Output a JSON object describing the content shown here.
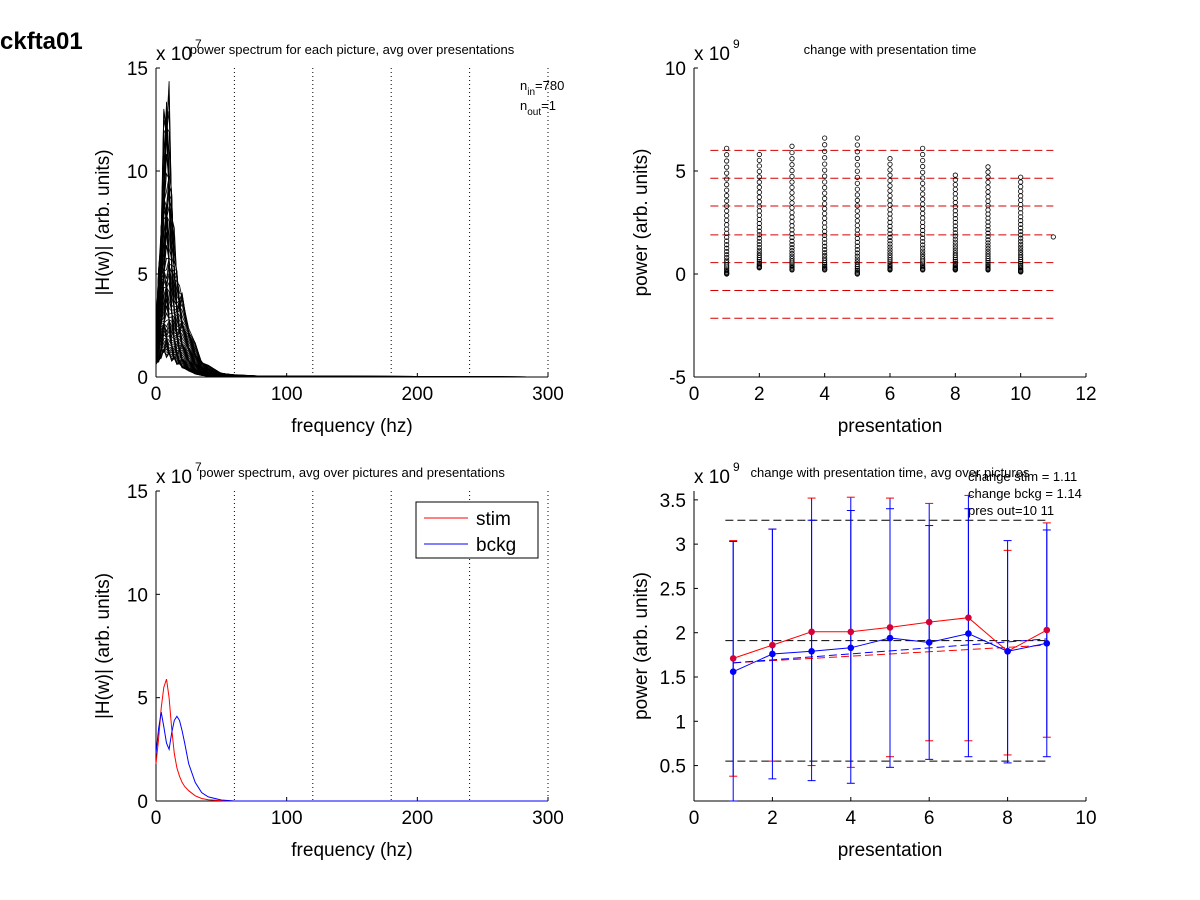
{
  "figure": {
    "title": "ckfta01",
    "colors": {
      "stim": "#ff0000",
      "bckg": "#0000ff",
      "raw": "#000000",
      "refline_red": "#d40000",
      "refline_black": "#000000"
    }
  },
  "chart_data": [
    {
      "id": "p1",
      "type": "line",
      "title": "power spectrum for each picture, avg over presentations",
      "xlabel": "frequency (hz)",
      "ylabel": "|H(w)| (arb. units)",
      "exponent_text": "x 10",
      "exponent_power": "7",
      "xlim": [
        0,
        300
      ],
      "ylim": [
        0,
        15
      ],
      "xticks": [
        0,
        100,
        200,
        300
      ],
      "yticks": [
        0,
        5,
        10,
        15
      ],
      "vlines_dotted": [
        60,
        120,
        180,
        240,
        300
      ],
      "annotations": [
        {
          "base": "n",
          "sub": "in",
          "rest": "=780"
        },
        {
          "base": "n",
          "sub": "out",
          "rest": "=1"
        }
      ],
      "note": "dense bundle of 780 individual spectra (black), peaking around 5-10 hz",
      "envelope": {
        "x": [
          0,
          2,
          4,
          6,
          8,
          10,
          12,
          14,
          16,
          18,
          20,
          25,
          30,
          35,
          40,
          50,
          60,
          80,
          120,
          200,
          300
        ],
        "max": [
          2.5,
          4.8,
          8.0,
          11.5,
          14.1,
          12.5,
          9.0,
          6.5,
          5.0,
          4.3,
          3.8,
          2.5,
          1.5,
          0.8,
          0.5,
          0.2,
          0.1,
          0.05,
          0.05,
          0.03,
          0.0
        ],
        "min": [
          0.6,
          0.8,
          1.0,
          1.2,
          1.1,
          1.0,
          0.9,
          0.8,
          0.7,
          0.6,
          0.5,
          0.3,
          0.15,
          0.08,
          0.04,
          0.01,
          0.0,
          0.0,
          0.0,
          0.0,
          0.0
        ]
      }
    },
    {
      "id": "p2",
      "type": "scatter",
      "title": "change with presentation time",
      "xlabel": "presentation",
      "ylabel": "power (arb. units)",
      "exponent_text": "x 10",
      "exponent_power": "9",
      "xlim": [
        0,
        12
      ],
      "ylim": [
        -5,
        10
      ],
      "xticks": [
        0,
        2,
        4,
        6,
        8,
        10,
        12
      ],
      "yticks": [
        -5,
        0,
        5,
        10
      ],
      "hlines_dashed": [
        6.0,
        4.65,
        3.3,
        1.9,
        0.55,
        -0.8,
        -2.15
      ],
      "columns": [
        {
          "x": 1,
          "ymin": 0.0,
          "ymax": 6.1
        },
        {
          "x": 2,
          "ymin": 0.3,
          "ymax": 5.8
        },
        {
          "x": 3,
          "ymin": 0.2,
          "ymax": 6.2
        },
        {
          "x": 4,
          "ymin": 0.2,
          "ymax": 6.6
        },
        {
          "x": 5,
          "ymin": 0.0,
          "ymax": 6.6
        },
        {
          "x": 6,
          "ymin": 0.2,
          "ymax": 5.6
        },
        {
          "x": 7,
          "ymin": 0.2,
          "ymax": 6.1
        },
        {
          "x": 8,
          "ymin": 0.2,
          "ymax": 4.8
        },
        {
          "x": 9,
          "ymin": 0.2,
          "ymax": 5.2
        },
        {
          "x": 10,
          "ymin": 0.1,
          "ymax": 4.7
        },
        {
          "x": 11,
          "ymin": 1.8,
          "ymax": 1.8
        }
      ]
    },
    {
      "id": "p3",
      "type": "line",
      "title": "power spectrum, avg over pictures and presentations",
      "xlabel": "frequency (hz)",
      "ylabel": "|H(w)| (arb. units)",
      "exponent_text": "x 10",
      "exponent_power": "7",
      "xlim": [
        0,
        300
      ],
      "ylim": [
        0,
        15
      ],
      "xticks": [
        0,
        100,
        200,
        300
      ],
      "yticks": [
        0,
        5,
        10,
        15
      ],
      "vlines_dotted": [
        60,
        120,
        180,
        240,
        300
      ],
      "legend": {
        "position": "top-right"
      },
      "x": [
        0,
        2,
        4,
        6,
        8,
        10,
        12,
        14,
        16,
        18,
        20,
        22,
        25,
        30,
        35,
        40,
        50,
        60,
        100,
        200,
        300
      ],
      "series": [
        {
          "name": "stim",
          "values": [
            1.8,
            3.0,
            4.5,
            5.5,
            5.9,
            5.0,
            3.5,
            2.3,
            1.6,
            1.2,
            0.9,
            0.7,
            0.5,
            0.25,
            0.12,
            0.06,
            0.02,
            0.0,
            0.0,
            0.0,
            0.0
          ]
        },
        {
          "name": "bckg",
          "values": [
            2.3,
            3.5,
            4.3,
            3.6,
            2.8,
            2.5,
            3.3,
            3.9,
            4.1,
            3.9,
            3.4,
            2.8,
            1.8,
            0.9,
            0.4,
            0.2,
            0.05,
            0.0,
            0.0,
            0.0,
            0.0
          ]
        }
      ]
    },
    {
      "id": "p4",
      "type": "line",
      "title": "change with presentation time, avg over pictures",
      "xlabel": "presentation",
      "ylabel": "power (arb. units)",
      "exponent_text": "x 10",
      "exponent_power": "9",
      "xlim": [
        0,
        10
      ],
      "ylim": [
        0.1,
        3.6
      ],
      "xticks": [
        0,
        2,
        4,
        6,
        8,
        10
      ],
      "yticks": [
        0.5,
        1,
        1.5,
        2,
        2.5,
        3,
        3.5
      ],
      "yticklabels": [
        "0.5",
        "1",
        "1.5",
        "2",
        "2.5",
        "3",
        "3.5"
      ],
      "annotation_lines": [
        "change stim = 1.11",
        "change bckg = 1.14",
        "pres out=10 11"
      ],
      "x": [
        1,
        2,
        3,
        4,
        5,
        6,
        7,
        8,
        9
      ],
      "series": [
        {
          "name": "stim",
          "values": [
            1.71,
            1.86,
            2.01,
            2.01,
            2.06,
            2.12,
            2.17,
            1.79,
            2.03
          ],
          "err_low": [
            0.38,
            0.55,
            0.5,
            0.48,
            0.6,
            0.78,
            0.78,
            0.62,
            0.82
          ],
          "err_high": [
            3.04,
            3.17,
            3.52,
            3.53,
            3.52,
            3.46,
            3.55,
            2.93,
            3.24
          ],
          "trend": [
            1.66,
            1.86
          ]
        },
        {
          "name": "bckg",
          "values": [
            1.56,
            1.76,
            1.79,
            1.83,
            1.94,
            1.89,
            1.99,
            1.79,
            1.88
          ],
          "err_low": [
            0.1,
            0.35,
            0.33,
            0.3,
            0.48,
            0.57,
            0.6,
            0.53,
            0.6
          ],
          "err_high": [
            3.03,
            3.17,
            3.27,
            3.38,
            3.4,
            3.21,
            3.4,
            3.04,
            3.16
          ],
          "trend": [
            1.66,
            1.93
          ]
        }
      ],
      "hlines_dashed_black": [
        3.27,
        1.91,
        0.55
      ]
    }
  ]
}
